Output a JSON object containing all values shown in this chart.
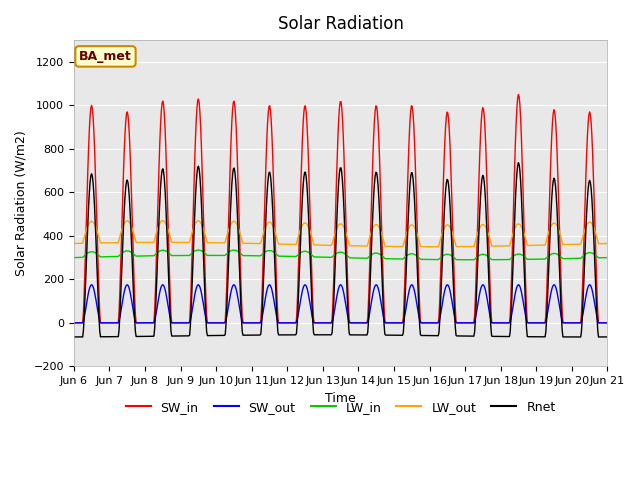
{
  "title": "Solar Radiation",
  "xlabel": "Time",
  "ylabel": "Solar Radiation (W/m2)",
  "ylim": [
    -200,
    1300
  ],
  "yticks": [
    -200,
    0,
    200,
    400,
    600,
    800,
    1000,
    1200
  ],
  "start_day": 6,
  "end_day": 21,
  "num_days": 15,
  "colors": {
    "SW_in": "#ff0000",
    "SW_out": "#0000ff",
    "LW_in": "#00cc00",
    "LW_out": "#ffa500",
    "Rnet": "#000000"
  },
  "label_box_text": "BA_met",
  "label_box_facecolor": "#ffffcc",
  "label_box_edgecolor": "#cc8800",
  "label_box_textcolor": "#660000",
  "background_color": "#e8e8e8",
  "grid_color": "#ffffff",
  "legend_labels": [
    "SW_in",
    "SW_out",
    "LW_in",
    "LW_out",
    "Rnet"
  ],
  "xtick_labels": [
    "Jun 6",
    "Jun 7",
    "Jun 8",
    "Jun 9",
    "Jun 10",
    "Jun 11",
    "Jun 12",
    "Jun 13",
    "Jun 14Jun",
    "Jun 15",
    "Jun 16",
    "Jun 17",
    "Jun 18",
    "Jun 19",
    "Jun 20",
    "Jun 21"
  ],
  "hours_per_day": 24,
  "dt_minutes": 30,
  "SW_in_peak": 1000,
  "SW_out_peak": 175,
  "LW_in_base": 300,
  "LW_in_day_delta": 30,
  "LW_out_base": 350,
  "LW_out_day_delta": 100,
  "Rnet_night": -80,
  "Rnet_day_peak": 680
}
